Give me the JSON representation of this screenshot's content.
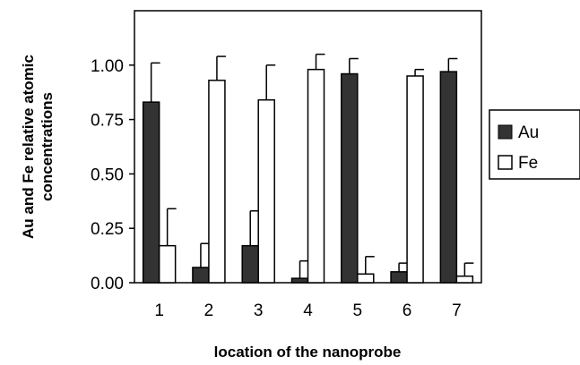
{
  "chart_data": {
    "type": "bar",
    "categories": [
      "1",
      "2",
      "3",
      "4",
      "5",
      "6",
      "7"
    ],
    "series": [
      {
        "name": "Au",
        "color": "#333333",
        "values": [
          0.83,
          0.07,
          0.17,
          0.02,
          0.96,
          0.05,
          0.97
        ],
        "error": [
          0.18,
          0.11,
          0.16,
          0.08,
          0.07,
          0.04,
          0.06
        ]
      },
      {
        "name": "Fe",
        "color": "#ffffff",
        "values": [
          0.17,
          0.93,
          0.84,
          0.98,
          0.04,
          0.95,
          0.03
        ],
        "error": [
          0.17,
          0.11,
          0.16,
          0.07,
          0.08,
          0.03,
          0.06
        ]
      }
    ],
    "yticks": [
      "0.00",
      "0.25",
      "0.50",
      "0.75",
      "1.00"
    ],
    "ylim": [
      0,
      1.25
    ],
    "xlabel": "location of the nanoprobe",
    "ylabel_lines": [
      "Au and Fe relative atomic",
      "concentrations"
    ],
    "legend_position": "right",
    "grid": false
  }
}
